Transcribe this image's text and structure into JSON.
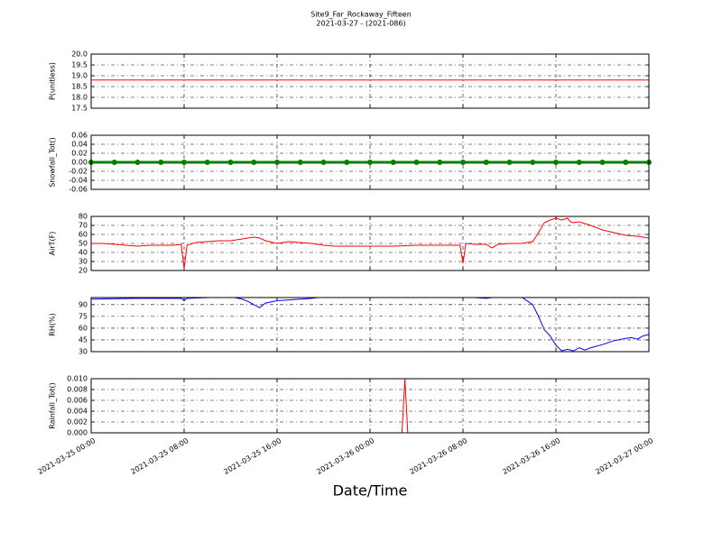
{
  "chart_data": [
    {
      "type": "line",
      "title": "Site9_Far_Rockaway_Fifteen",
      "subtitle": "2021-03-27 - (2021-086)",
      "ylabel": "P(unitless)",
      "ylim": [
        17.5,
        20.0
      ],
      "yticks": [
        17.5,
        {
          "value": 18,
          "label": "18.0"
        },
        18.5,
        {
          "value": 19,
          "label": "19.0"
        },
        19.5,
        {
          "value": 20,
          "label": "20.0"
        }
      ],
      "grid": true,
      "series": [
        {
          "name": "P",
          "color": "#ff0000",
          "x": [
            "2021-03-25 00:00",
            "2021-03-27 00:00"
          ],
          "values": [
            18.8,
            18.8
          ]
        }
      ]
    },
    {
      "type": "line",
      "ylabel": "Snowfall_Tot()",
      "marker": "o",
      "ylim": [
        -0.06,
        0.06
      ],
      "yticks": [
        -0.06,
        -0.04,
        -0.02,
        {
          "value": 0,
          "label": "0.00"
        },
        0.02,
        0.04,
        0.06
      ],
      "grid": true,
      "series": [
        {
          "name": "Snowfall_Tot",
          "color": "#008000",
          "x": [
            "2021-03-25 00:00",
            "2021-03-25 02:00",
            "2021-03-25 04:00",
            "2021-03-25 06:00",
            "2021-03-25 08:00",
            "2021-03-25 10:00",
            "2021-03-25 12:00",
            "2021-03-25 14:00",
            "2021-03-25 16:00",
            "2021-03-25 18:00",
            "2021-03-25 20:00",
            "2021-03-25 22:00",
            "2021-03-26 00:00",
            "2021-03-26 02:00",
            "2021-03-26 04:00",
            "2021-03-26 06:00",
            "2021-03-26 08:00",
            "2021-03-26 10:00",
            "2021-03-26 12:00",
            "2021-03-26 14:00",
            "2021-03-26 16:00",
            "2021-03-26 18:00",
            "2021-03-26 20:00",
            "2021-03-26 22:00",
            "2021-03-27 00:00"
          ],
          "values": [
            0,
            0,
            0,
            0,
            0,
            0,
            0,
            0,
            0,
            0,
            0,
            0,
            0,
            0,
            0,
            0,
            0,
            0,
            0,
            0,
            0,
            0,
            0,
            0,
            0
          ]
        }
      ]
    },
    {
      "type": "line",
      "ylabel": "AirT(F)",
      "ylim": [
        20,
        80
      ],
      "yticks": [
        20,
        30,
        40,
        50,
        60,
        70,
        80
      ],
      "grid": true,
      "series": [
        {
          "name": "AirT",
          "color": "#ff0000",
          "x": [
            "2021-03-25 00:00",
            "2021-03-25 01:00",
            "2021-03-25 02:00",
            "2021-03-25 03:00",
            "2021-03-25 04:00",
            "2021-03-25 05:00",
            "2021-03-25 06:00",
            "2021-03-25 07:00",
            "2021-03-25 07:45",
            "2021-03-25 08:00",
            "2021-03-25 08:15",
            "2021-03-25 09:00",
            "2021-03-25 10:00",
            "2021-03-25 11:00",
            "2021-03-25 12:00",
            "2021-03-25 13:00",
            "2021-03-25 14:00",
            "2021-03-25 14:30",
            "2021-03-25 15:00",
            "2021-03-25 16:00",
            "2021-03-25 17:00",
            "2021-03-25 18:00",
            "2021-03-25 19:00",
            "2021-03-25 20:00",
            "2021-03-25 21:00",
            "2021-03-25 22:00",
            "2021-03-26 00:00",
            "2021-03-26 02:00",
            "2021-03-26 04:00",
            "2021-03-26 06:00",
            "2021-03-26 07:45",
            "2021-03-26 08:00",
            "2021-03-26 08:15",
            "2021-03-26 09:00",
            "2021-03-26 10:00",
            "2021-03-26 10:30",
            "2021-03-26 11:00",
            "2021-03-26 12:00",
            "2021-03-26 13:00",
            "2021-03-26 14:00",
            "2021-03-26 14:30",
            "2021-03-26 15:00",
            "2021-03-26 15:30",
            "2021-03-26 16:00",
            "2021-03-26 16:30",
            "2021-03-26 17:00",
            "2021-03-26 17:15",
            "2021-03-26 17:30",
            "2021-03-26 18:00",
            "2021-03-26 19:00",
            "2021-03-26 20:00",
            "2021-03-26 21:00",
            "2021-03-26 22:00",
            "2021-03-26 23:00",
            "2021-03-27 00:00"
          ],
          "values": [
            50,
            50,
            49,
            48,
            47,
            48,
            48,
            48,
            49,
            22,
            48,
            51,
            52,
            53,
            53,
            55,
            57,
            56,
            53,
            50,
            52,
            51,
            50,
            48,
            47,
            47,
            47,
            47,
            48,
            48,
            48,
            28,
            50,
            49,
            49,
            45,
            49,
            50,
            50,
            52,
            62,
            73,
            76,
            78,
            76,
            78,
            74,
            73,
            74,
            70,
            65,
            62,
            59,
            58,
            56
          ]
        }
      ]
    },
    {
      "type": "line",
      "ylabel": "RH(%)",
      "ylim": [
        30,
        99
      ],
      "yticks": [
        30,
        45,
        60,
        75,
        90
      ],
      "grid": true,
      "series": [
        {
          "name": "RH",
          "color": "#0000ff",
          "x": [
            "2021-03-25 00:00",
            "2021-03-25 04:00",
            "2021-03-25 07:45",
            "2021-03-25 08:00",
            "2021-03-25 08:15",
            "2021-03-25 12:00",
            "2021-03-25 13:00",
            "2021-03-25 13:30",
            "2021-03-25 14:00",
            "2021-03-25 14:30",
            "2021-03-25 15:00",
            "2021-03-25 16:00",
            "2021-03-25 17:00",
            "2021-03-25 18:00",
            "2021-03-25 19:00",
            "2021-03-25 20:00",
            "2021-03-26 08:00",
            "2021-03-26 10:00",
            "2021-03-26 11:00",
            "2021-03-26 13:00",
            "2021-03-26 14:00",
            "2021-03-26 14:30",
            "2021-03-26 15:00",
            "2021-03-26 15:30",
            "2021-03-26 16:00",
            "2021-03-26 16:30",
            "2021-03-26 17:00",
            "2021-03-26 17:30",
            "2021-03-26 18:00",
            "2021-03-26 18:30",
            "2021-03-26 19:00",
            "2021-03-26 20:00",
            "2021-03-26 21:00",
            "2021-03-26 22:00",
            "2021-03-26 22:30",
            "2021-03-26 23:00",
            "2021-03-26 23:30",
            "2021-03-27 00:00"
          ],
          "values": [
            97,
            98,
            98,
            95,
            98,
            100,
            97,
            94,
            90,
            86,
            92,
            95,
            96,
            97,
            98,
            100,
            100,
            98,
            100,
            100,
            90,
            75,
            58,
            50,
            38,
            31,
            33,
            31,
            35,
            32,
            35,
            39,
            44,
            47,
            48,
            46,
            50,
            52
          ]
        }
      ]
    },
    {
      "type": "line",
      "ylabel": "Rainfall_Tot()",
      "xlabel": "Date/Time",
      "xlim": [
        "2021-03-25 00:00",
        "2021-03-27 00:00"
      ],
      "xticks": [
        "2021-03-25 00:00",
        "2021-03-25 08:00",
        "2021-03-25 16:00",
        "2021-03-26 00:00",
        "2021-03-26 08:00",
        "2021-03-26 16:00",
        "2021-03-27 00:00"
      ],
      "ylim": [
        0,
        0.01
      ],
      "yticks": [
        {
          "value": 0,
          "label": "0.000"
        },
        0.002,
        0.004,
        0.006,
        0.008,
        {
          "value": 0.01,
          "label": "0.010"
        }
      ],
      "grid": true,
      "series": [
        {
          "name": "Rainfall_Tot",
          "color": "#ff0000",
          "x": [
            "2021-03-25 00:00",
            "2021-03-26 02:45",
            "2021-03-26 03:00",
            "2021-03-26 03:15",
            "2021-03-27 00:00"
          ],
          "values": [
            0,
            0,
            0.01,
            0,
            0
          ]
        }
      ]
    }
  ]
}
